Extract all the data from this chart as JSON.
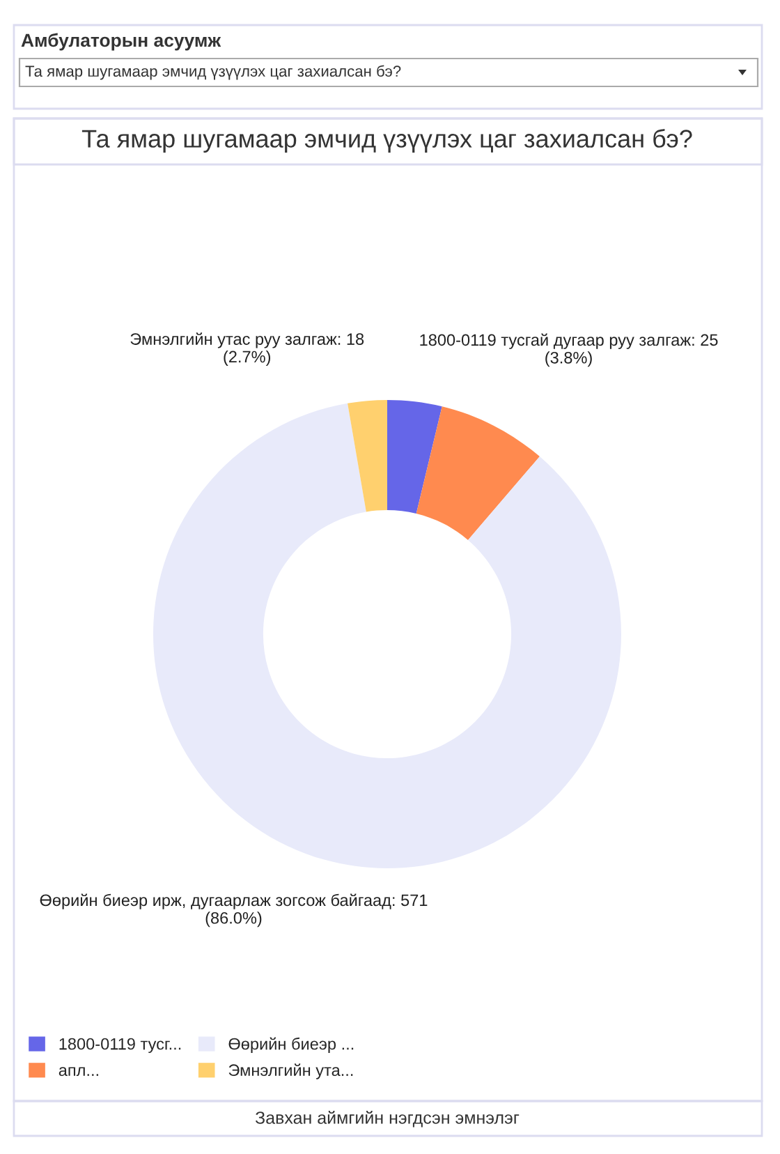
{
  "chart_data": {
    "type": "donut",
    "title": "Та ямар шугамаар эмчид үзүүлэх цаг захиалсан бэ?",
    "annotations": [
      "Амбулаторын асуумж",
      "Та ямар шугамаар эмчид үзүүлэх цаг захиалсан бэ?",
      "Завхан аймгийн нэгдсэн эмнэлэг"
    ],
    "categories": [
      "1800-0119 тусг...",
      "апл...",
      "Өөрийн биеэр ...",
      "Эмнэлгийн ута..."
    ],
    "values": [
      25,
      50,
      571,
      18
    ],
    "colors": [
      "#6566e8",
      "#ff8a4f",
      "#e8eafa",
      "#ffd06e"
    ],
    "value_labels": [
      "1800-0119 тусгай дугаар руу залгаж: 25\n(3.8%)",
      null,
      "Өөрийн биеэр ирж, дугаарлаж зогсож байгаад: 571\n(86.0%)",
      "Эмнэлгийн утас руу залгаж: 18\n(2.7%)"
    ],
    "legend": "bottom left"
  }
}
